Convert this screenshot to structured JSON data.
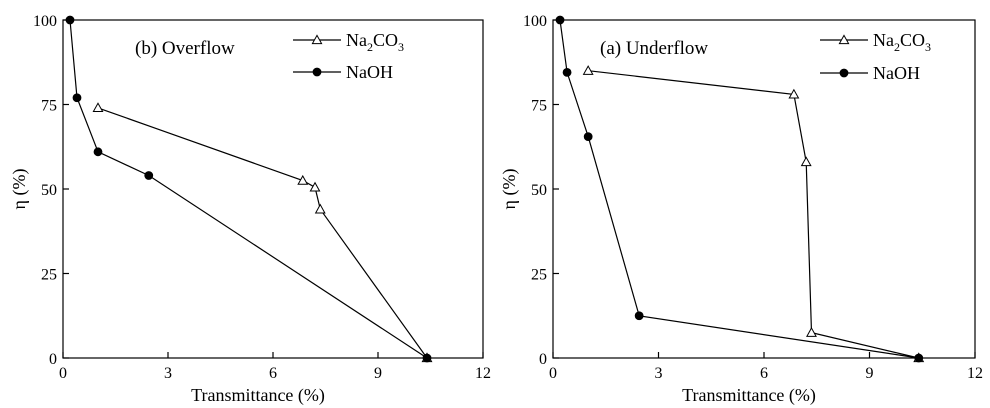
{
  "chart_data": [
    {
      "type": "line",
      "title": "(b)  Overflow",
      "xlabel": "Transmittance (%)",
      "ylabel": "η (%)",
      "xlim": [
        0,
        12
      ],
      "ylim": [
        0,
        100
      ],
      "xticks": [
        "0",
        "3",
        "6",
        "9",
        "12"
      ],
      "yticks": [
        "0",
        "25",
        "50",
        "75",
        "100"
      ],
      "grid": false,
      "legend_position": "top-right",
      "series": [
        {
          "name": "Na2CO3",
          "legend": {
            "main": "Na",
            "sub1": "2",
            "mid": "CO",
            "sub2": "3"
          },
          "marker": "open-triangle",
          "color": "#000000",
          "x": [
            1.0,
            6.85,
            7.2,
            7.35,
            10.4
          ],
          "y": [
            74,
            52.5,
            50.5,
            44,
            0
          ]
        },
        {
          "name": "NaOH",
          "legend": {
            "main": "NaOH"
          },
          "marker": "filled-circle",
          "color": "#000000",
          "x": [
            0.2,
            0.4,
            1.0,
            2.45,
            10.4
          ],
          "y": [
            100,
            77,
            61,
            54,
            0
          ]
        }
      ]
    },
    {
      "type": "line",
      "title": "(a)  Underflow",
      "xlabel": "Transmittance (%)",
      "ylabel": "η (%)",
      "xlim": [
        0,
        12
      ],
      "ylim": [
        0,
        100
      ],
      "xticks": [
        "0",
        "3",
        "6",
        "9",
        "12"
      ],
      "yticks": [
        "0",
        "25",
        "50",
        "75",
        "100"
      ],
      "grid": false,
      "legend_position": "top-right",
      "series": [
        {
          "name": "Na2CO3",
          "legend": {
            "main": "Na",
            "sub1": "2",
            "mid": "CO",
            "sub2": "3"
          },
          "marker": "open-triangle",
          "color": "#000000",
          "x": [
            1.0,
            6.85,
            7.2,
            7.35,
            10.4
          ],
          "y": [
            85,
            78,
            58,
            7.5,
            0
          ]
        },
        {
          "name": "NaOH",
          "legend": {
            "main": "NaOH"
          },
          "marker": "filled-circle",
          "color": "#000000",
          "x": [
            0.2,
            0.4,
            1.0,
            2.45,
            10.4
          ],
          "y": [
            100,
            84.5,
            65.5,
            12.5,
            0
          ]
        }
      ]
    }
  ]
}
